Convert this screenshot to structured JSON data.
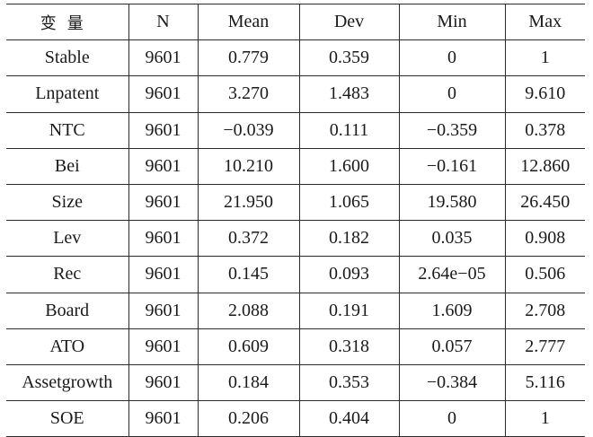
{
  "table": {
    "headers": [
      "变量",
      "N",
      "Mean",
      "Dev",
      "Min",
      "Max"
    ],
    "rows": [
      [
        "Stable",
        "9601",
        "0.779",
        "0.359",
        "0",
        "1"
      ],
      [
        "Lnpatent",
        "9601",
        "3.270",
        "1.483",
        "0",
        "9.610"
      ],
      [
        "NTC",
        "9601",
        "−0.039",
        "0.111",
        "−0.359",
        "0.378"
      ],
      [
        "Bei",
        "9601",
        "10.210",
        "1.600",
        "−0.161",
        "12.860"
      ],
      [
        "Size",
        "9601",
        "21.950",
        "1.065",
        "19.580",
        "26.450"
      ],
      [
        "Lev",
        "9601",
        "0.372",
        "0.182",
        "0.035",
        "0.908"
      ],
      [
        "Rec",
        "9601",
        "0.145",
        "0.093",
        "2.64e−05",
        "0.506"
      ],
      [
        "Board",
        "9601",
        "2.088",
        "0.191",
        "1.609",
        "2.708"
      ],
      [
        "ATO",
        "9601",
        "0.609",
        "0.318",
        "0.057",
        "2.777"
      ],
      [
        "Assetgrowth",
        "9601",
        "0.184",
        "0.353",
        "−0.384",
        "5.116"
      ],
      [
        "SOE",
        "9601",
        "0.206",
        "0.404",
        "0",
        "1"
      ]
    ]
  }
}
